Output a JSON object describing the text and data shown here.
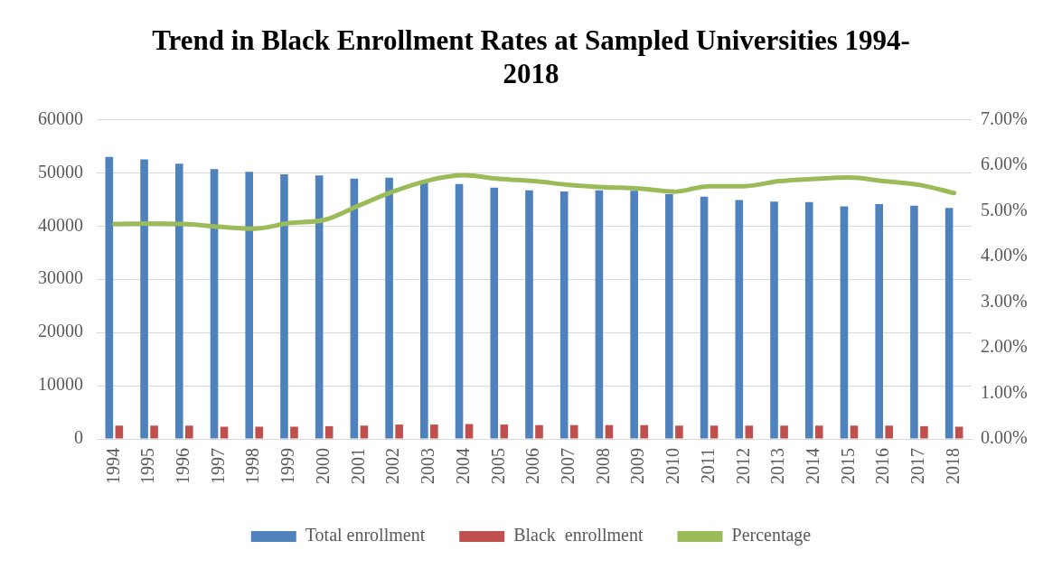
{
  "chart_data": {
    "type": "bar",
    "title": "Trend in Black Enrollment Rates at Sampled Universities 1994-2018",
    "categories": [
      "1994",
      "1995",
      "1996",
      "1997",
      "1998",
      "1999",
      "2000",
      "2001",
      "2002",
      "2003",
      "2004",
      "2005",
      "2006",
      "2007",
      "2008",
      "2009",
      "2010",
      "2011",
      "2012",
      "2013",
      "2014",
      "2015",
      "2016",
      "2017",
      "2018"
    ],
    "series": [
      {
        "name": "Total enrollment",
        "color": "#4f81bd",
        "values": [
          53000,
          52500,
          51700,
          50700,
          50200,
          49700,
          49500,
          48900,
          49100,
          48200,
          47900,
          47200,
          46700,
          46500,
          46700,
          46600,
          46000,
          45500,
          44900,
          44600,
          44500,
          43700,
          44100,
          43800,
          43400
        ]
      },
      {
        "name": "Black  enrollment",
        "color": "#c0504d",
        "values": [
          2500,
          2500,
          2500,
          2300,
          2300,
          2300,
          2400,
          2500,
          2700,
          2700,
          2800,
          2700,
          2600,
          2600,
          2600,
          2600,
          2500,
          2500,
          2500,
          2500,
          2500,
          2500,
          2500,
          2400,
          2300
        ]
      },
      {
        "name": "Percentage",
        "type": "line",
        "axis": "y2",
        "color": "#9bbb59",
        "values": [
          4.71,
          4.72,
          4.71,
          4.65,
          4.61,
          4.73,
          4.8,
          5.12,
          5.43,
          5.67,
          5.78,
          5.7,
          5.65,
          5.57,
          5.52,
          5.49,
          5.42,
          5.54,
          5.54,
          5.65,
          5.7,
          5.73,
          5.65,
          5.57,
          5.39
        ]
      }
    ],
    "ylim": [
      0,
      60000
    ],
    "yticks": [
      0,
      10000,
      20000,
      30000,
      40000,
      50000,
      60000
    ],
    "y2lim": [
      0,
      7
    ],
    "y2ticks": [
      {
        "value": 0,
        "label": "0.00%"
      },
      {
        "value": 1,
        "label": "1.00%"
      },
      {
        "value": 2,
        "label": "2.00%"
      },
      {
        "value": 3,
        "label": "3.00%"
      },
      {
        "value": 4,
        "label": "4.00%"
      },
      {
        "value": 5,
        "label": "5.00%"
      },
      {
        "value": 6,
        "label": "6.00%"
      },
      {
        "value": 7,
        "label": "7.00%"
      }
    ],
    "grid": "y",
    "legend": "bottom",
    "marker": "none",
    "line_style": "solid"
  }
}
